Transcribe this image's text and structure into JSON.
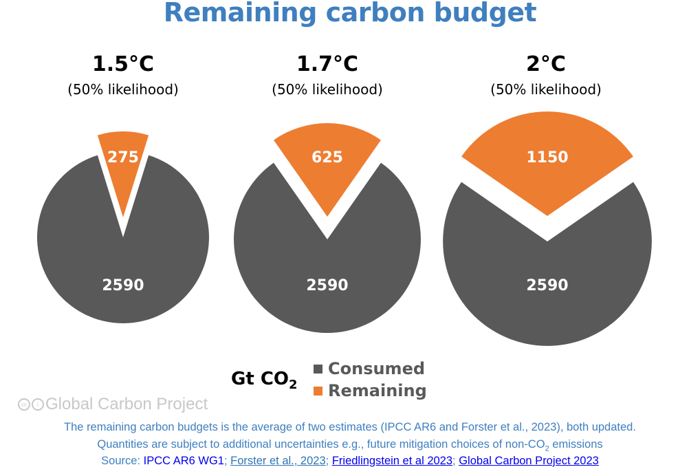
{
  "title": "Remaining carbon budget",
  "chart_data": {
    "type": "pie",
    "title": "Remaining carbon budget",
    "unit": "Gt CO₂",
    "legend": [
      {
        "label": "Consumed",
        "color": "#595959"
      },
      {
        "label": "Remaining",
        "color": "#ed7d31"
      }
    ],
    "legend_placement": "bottom-center",
    "charts": [
      {
        "temperature": "1.5°C",
        "likelihood": "(50% likelihood)",
        "consumed": 2590,
        "remaining": 275,
        "consumed_label": "2590",
        "remaining_label": "275"
      },
      {
        "temperature": "1.7°C",
        "likelihood": "(50% likelihood)",
        "consumed": 2590,
        "remaining": 625,
        "consumed_label": "2590",
        "remaining_label": "625"
      },
      {
        "temperature": "2°C",
        "likelihood": "(50% likelihood)",
        "consumed": 2590,
        "remaining": 1150,
        "consumed_label": "2590",
        "remaining_label": "1150"
      }
    ]
  },
  "unit_prefix": "Gt CO",
  "unit_sub": "2",
  "watermark": "Global Carbon Project",
  "footer": {
    "line1": "The remaining carbon budgets is the average of two estimates (IPCC AR6 and Forster et al., 2023), both updated.",
    "line2a": "Quantities are subject to additional uncertainties e.g., future mitigation choices of non-CO",
    "line2sub": "2",
    "line2b": " emissions",
    "source_label": "Source: ",
    "sources": [
      "IPCC AR6 WG1",
      "Forster et al., 2023",
      "Friedlingstein et al 2023",
      "Global Carbon Project 2023"
    ],
    "sep": "; "
  }
}
